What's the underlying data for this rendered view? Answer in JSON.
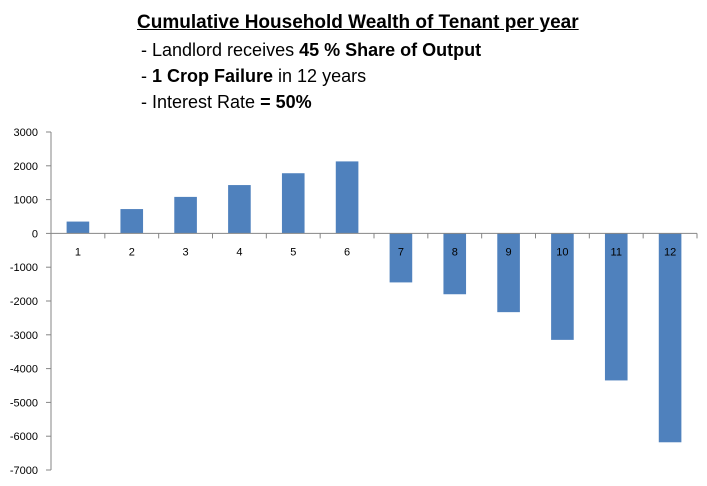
{
  "chart_data": {
    "type": "bar",
    "title": "Cumulative Household  Wealth  of Tenant  per year",
    "subtitle_lines": [
      {
        "prefix": "- Landlord receives ",
        "bold": "45 % Share of Output",
        "suffix": ""
      },
      {
        "prefix": "- ",
        "bold": "1 Crop Failure",
        "suffix": " in 12 years"
      },
      {
        "prefix": "- Interest Rate ",
        "bold": "= 50%",
        "suffix": ""
      }
    ],
    "categories": [
      "1",
      "2",
      "3",
      "4",
      "5",
      "6",
      "7",
      "8",
      "9",
      "10",
      "11",
      "12"
    ],
    "values": [
      350,
      720,
      1080,
      1430,
      1780,
      2130,
      -1450,
      -1800,
      -2330,
      -3150,
      -4350,
      -6180
    ],
    "ylim": [
      -7000,
      3000
    ],
    "yticks": [
      3000,
      2000,
      1000,
      0,
      -1000,
      -2000,
      -3000,
      -4000,
      -5000,
      -6000,
      -7000
    ],
    "xlabel": "",
    "ylabel": "",
    "bar_color": "#4f81bd",
    "grid": false,
    "legend": "none"
  }
}
